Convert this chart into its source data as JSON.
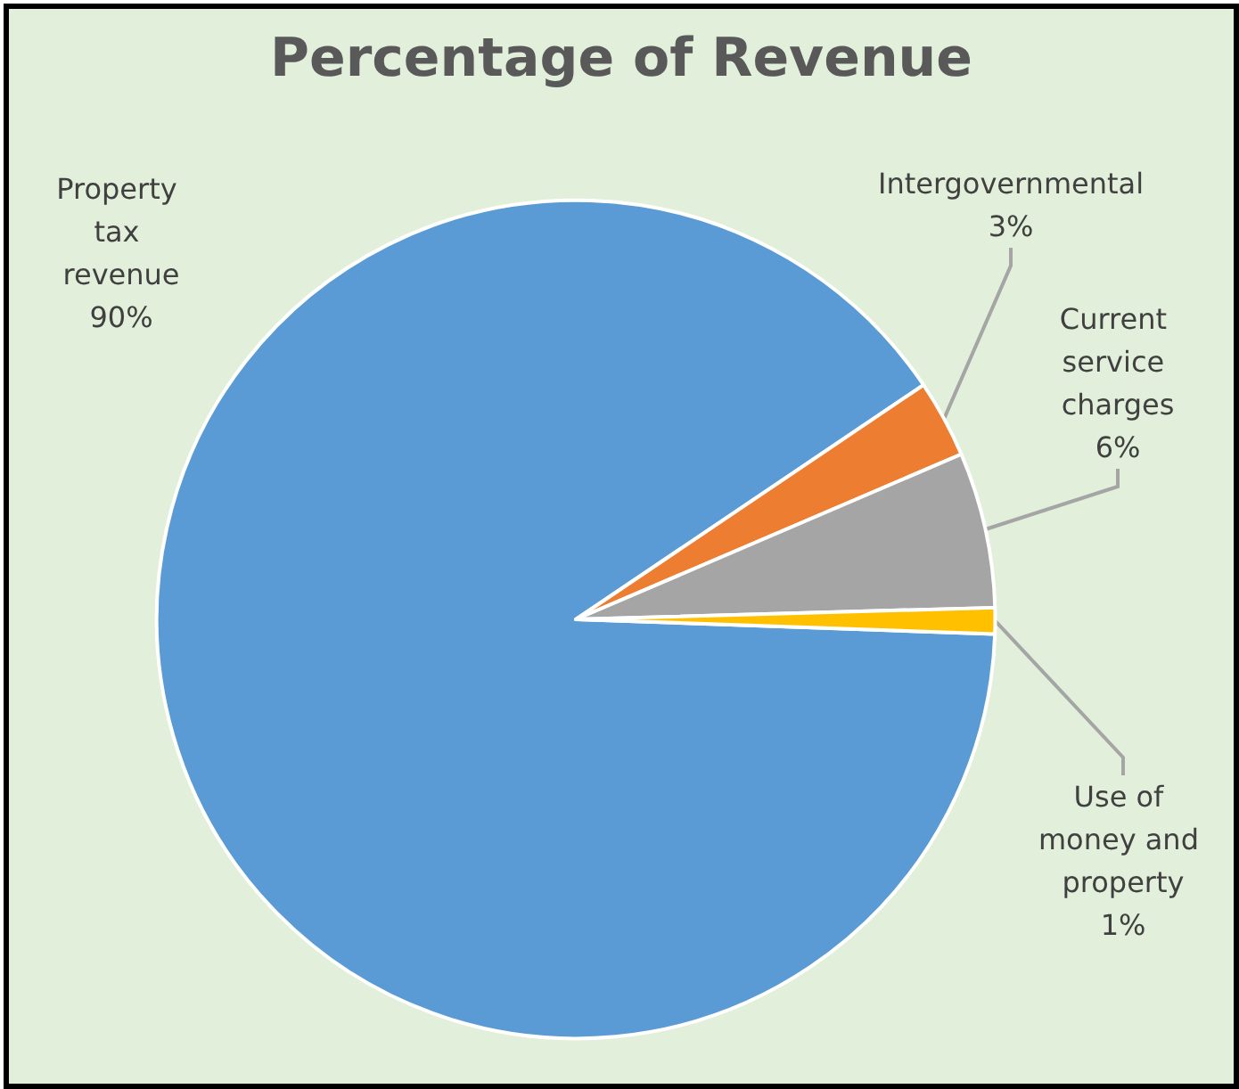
{
  "chart_data": {
    "type": "pie",
    "title": "Percentage of Revenue",
    "categories": [
      "Property tax revenue",
      "Intergovernmental",
      "Current service charges",
      "Use of money and property"
    ],
    "values": [
      90,
      3,
      6,
      1
    ],
    "value_labels": [
      "90%",
      "3%",
      "6%",
      "1%"
    ],
    "colors": [
      "#5b9bd5",
      "#ed7d31",
      "#a5a5a5",
      "#ffc000"
    ],
    "legend": false
  }
}
